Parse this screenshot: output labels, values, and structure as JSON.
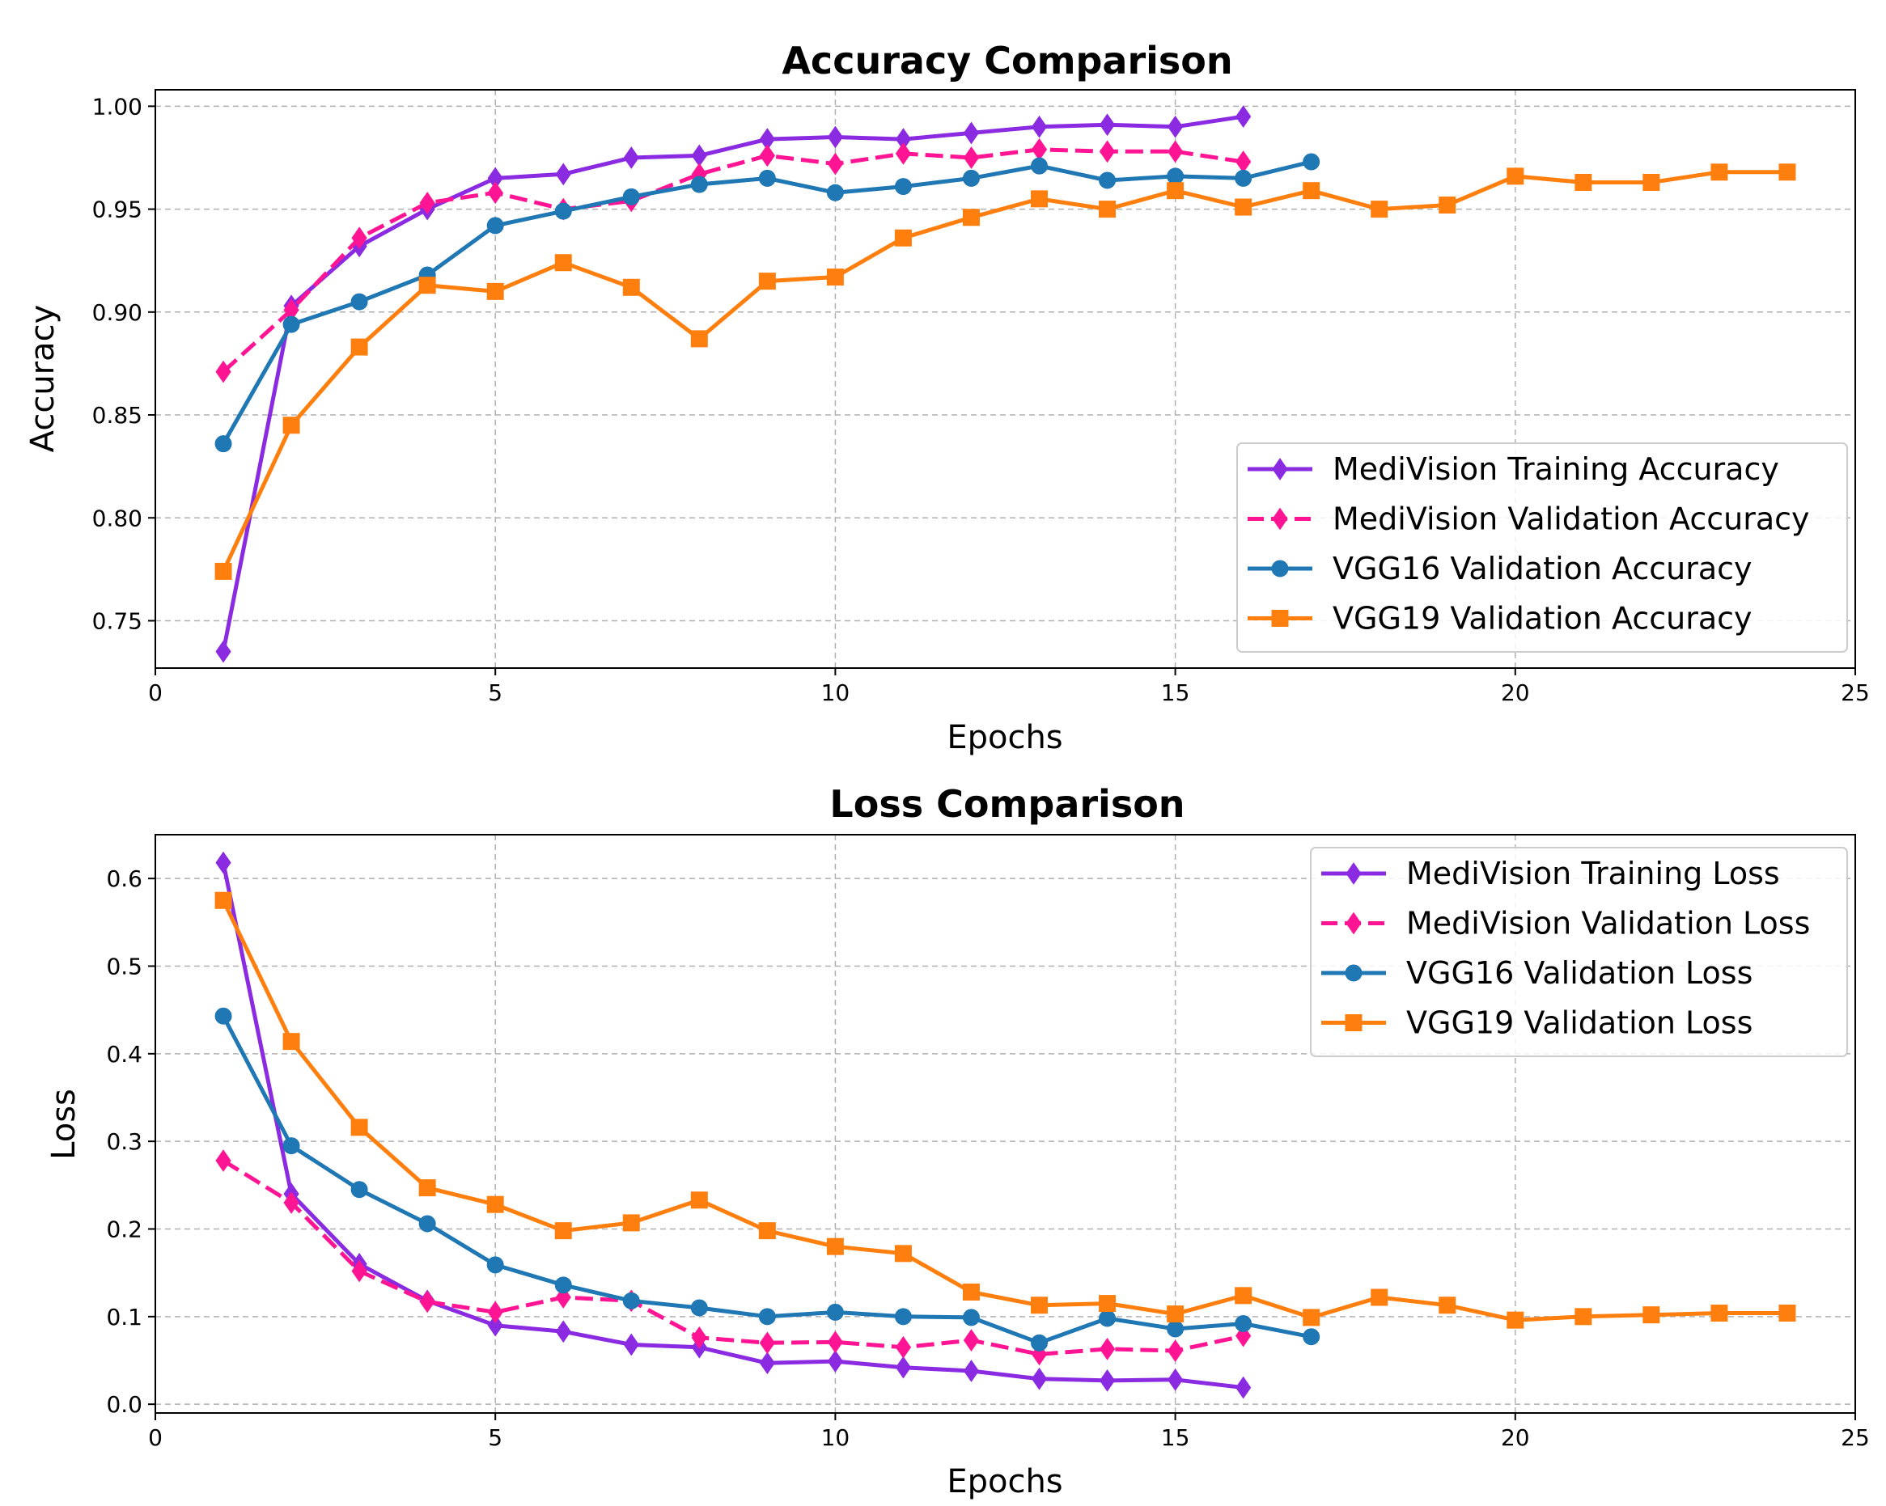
{
  "chart_data": [
    {
      "type": "line",
      "title": "Accuracy Comparison",
      "xlabel": "Epochs",
      "ylabel": "Accuracy",
      "xlim": [
        0,
        25
      ],
      "ylim": [
        0.727,
        1.008
      ],
      "xticks": [
        0,
        5,
        10,
        15,
        20,
        25
      ],
      "yticks": [
        0.75,
        0.8,
        0.85,
        0.9,
        0.95,
        1.0
      ],
      "ytick_labels": [
        "0.75",
        "0.80",
        "0.85",
        "0.90",
        "0.95",
        "1.00"
      ],
      "grid": true,
      "legend_position": "lower-right",
      "series": [
        {
          "name": "MediVision Training Accuracy",
          "color": "#8a2be2",
          "marker": "diamond",
          "dashed": false,
          "x": [
            1,
            2,
            3,
            4,
            5,
            6,
            7,
            8,
            9,
            10,
            11,
            12,
            13,
            14,
            15,
            16
          ],
          "y": [
            0.735,
            0.903,
            0.932,
            0.95,
            0.965,
            0.967,
            0.975,
            0.976,
            0.984,
            0.985,
            0.984,
            0.987,
            0.99,
            0.991,
            0.99,
            0.995
          ]
        },
        {
          "name": "MediVision Validation Accuracy",
          "color": "#ff1493",
          "marker": "diamond",
          "dashed": true,
          "x": [
            1,
            2,
            3,
            4,
            5,
            6,
            7,
            8,
            9,
            10,
            11,
            12,
            13,
            14,
            15,
            16
          ],
          "y": [
            0.871,
            0.901,
            0.936,
            0.953,
            0.958,
            0.95,
            0.954,
            0.967,
            0.976,
            0.972,
            0.977,
            0.975,
            0.979,
            0.978,
            0.978,
            0.973
          ]
        },
        {
          "name": "VGG16 Validation Accuracy",
          "color": "#1f77b4",
          "marker": "circle",
          "dashed": false,
          "x": [
            1,
            2,
            3,
            4,
            5,
            6,
            7,
            8,
            9,
            10,
            11,
            12,
            13,
            14,
            15,
            16,
            17
          ],
          "y": [
            0.836,
            0.894,
            0.905,
            0.918,
            0.942,
            0.949,
            0.956,
            0.962,
            0.965,
            0.958,
            0.961,
            0.965,
            0.971,
            0.964,
            0.966,
            0.965,
            0.973
          ]
        },
        {
          "name": "VGG19 Validation Accuracy",
          "color": "#ff7f0e",
          "marker": "square",
          "dashed": false,
          "x": [
            1,
            2,
            3,
            4,
            5,
            6,
            7,
            8,
            9,
            10,
            11,
            12,
            13,
            14,
            15,
            16,
            17,
            18,
            19,
            20,
            21,
            22,
            23,
            24
          ],
          "y": [
            0.774,
            0.845,
            0.883,
            0.913,
            0.91,
            0.924,
            0.912,
            0.887,
            0.915,
            0.917,
            0.936,
            0.946,
            0.955,
            0.95,
            0.959,
            0.951,
            0.959,
            0.95,
            0.952,
            0.966,
            0.963,
            0.963,
            0.968,
            0.968
          ]
        }
      ]
    },
    {
      "type": "line",
      "title": "Loss Comparison",
      "xlabel": "Epochs",
      "ylabel": "Loss",
      "xlim": [
        0,
        25
      ],
      "ylim": [
        -0.01,
        0.65
      ],
      "xticks": [
        0,
        5,
        10,
        15,
        20,
        25
      ],
      "yticks": [
        0.0,
        0.1,
        0.2,
        0.3,
        0.4,
        0.5,
        0.6
      ],
      "ytick_labels": [
        "0.0",
        "0.1",
        "0.2",
        "0.3",
        "0.4",
        "0.5",
        "0.6"
      ],
      "grid": true,
      "legend_position": "upper-right",
      "series": [
        {
          "name": "MediVision Training Loss",
          "color": "#8a2be2",
          "marker": "diamond",
          "dashed": false,
          "x": [
            1,
            2,
            3,
            4,
            5,
            6,
            7,
            8,
            9,
            10,
            11,
            12,
            13,
            14,
            15,
            16
          ],
          "y": [
            0.618,
            0.24,
            0.16,
            0.118,
            0.09,
            0.083,
            0.068,
            0.065,
            0.047,
            0.049,
            0.042,
            0.038,
            0.029,
            0.027,
            0.028,
            0.019
          ]
        },
        {
          "name": "MediVision Validation Loss",
          "color": "#ff1493",
          "marker": "diamond",
          "dashed": true,
          "x": [
            1,
            2,
            3,
            4,
            5,
            6,
            7,
            8,
            9,
            10,
            11,
            12,
            13,
            14,
            15,
            16
          ],
          "y": [
            0.278,
            0.23,
            0.152,
            0.117,
            0.105,
            0.122,
            0.118,
            0.076,
            0.07,
            0.071,
            0.065,
            0.073,
            0.057,
            0.063,
            0.061,
            0.078
          ]
        },
        {
          "name": "VGG16 Validation Loss",
          "color": "#1f77b4",
          "marker": "circle",
          "dashed": false,
          "x": [
            1,
            2,
            3,
            4,
            5,
            6,
            7,
            8,
            9,
            10,
            11,
            12,
            13,
            14,
            15,
            16,
            17
          ],
          "y": [
            0.443,
            0.295,
            0.245,
            0.206,
            0.159,
            0.136,
            0.118,
            0.11,
            0.1,
            0.105,
            0.1,
            0.099,
            0.07,
            0.098,
            0.086,
            0.092,
            0.077
          ]
        },
        {
          "name": "VGG19 Validation Loss",
          "color": "#ff7f0e",
          "marker": "square",
          "dashed": false,
          "x": [
            1,
            2,
            3,
            4,
            5,
            6,
            7,
            8,
            9,
            10,
            11,
            12,
            13,
            14,
            15,
            16,
            17,
            18,
            19,
            20,
            21,
            22,
            23,
            24
          ],
          "y": [
            0.575,
            0.414,
            0.316,
            0.247,
            0.228,
            0.198,
            0.207,
            0.233,
            0.198,
            0.18,
            0.172,
            0.128,
            0.113,
            0.115,
            0.103,
            0.124,
            0.099,
            0.122,
            0.113,
            0.096,
            0.1,
            0.102,
            0.104,
            0.104
          ]
        }
      ]
    }
  ]
}
